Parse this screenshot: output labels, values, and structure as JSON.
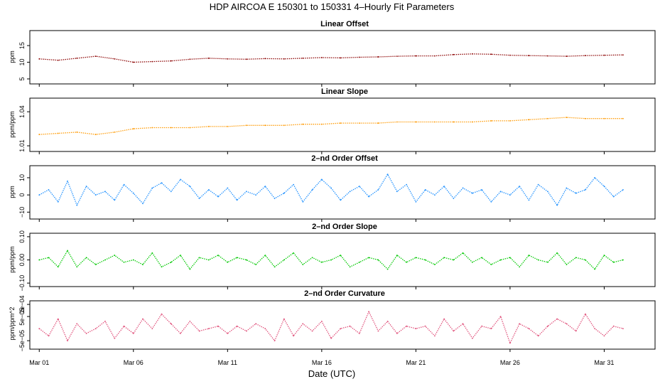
{
  "title": "HDP   AIRCOA E   150301 to 150331   4–Hourly Fit Parameters",
  "xlabel": "Date (UTC)",
  "x_ticks": [
    "Mar 01",
    "Mar 06",
    "Mar 11",
    "Mar 16",
    "Mar 21",
    "Mar 26",
    "Mar 31"
  ],
  "chart_data": [
    {
      "type": "line",
      "title": "Linear Offset",
      "ylabel": "ppm",
      "yticks": [
        "5",
        "10",
        "15"
      ],
      "ylim": [
        3.5,
        19.5
      ],
      "color": "#8b0000",
      "x": [
        1,
        2,
        3,
        4,
        5,
        6,
        7,
        8,
        9,
        10,
        11,
        12,
        13,
        14,
        15,
        16,
        17,
        18,
        19,
        20,
        21,
        22,
        23,
        24,
        25,
        26,
        27,
        28,
        29,
        30,
        31,
        32
      ],
      "values": [
        11.0,
        10.6,
        11.2,
        11.8,
        11.0,
        10.0,
        10.2,
        10.4,
        10.9,
        11.2,
        11.0,
        10.9,
        11.1,
        11.0,
        11.2,
        11.4,
        11.3,
        11.5,
        11.6,
        11.8,
        11.9,
        11.9,
        12.3,
        12.5,
        12.4,
        12.1,
        12.0,
        11.9,
        11.8,
        12.0,
        12.1,
        12.2
      ]
    },
    {
      "type": "line",
      "title": "Linear Slope",
      "ylabel": "ppm/ppm",
      "yticks": [
        "1.01",
        "1.04"
      ],
      "ylim": [
        1.005,
        1.052
      ],
      "color": "#ff9900",
      "x": [
        1,
        2,
        3,
        4,
        5,
        6,
        7,
        8,
        9,
        10,
        11,
        12,
        13,
        14,
        15,
        16,
        17,
        18,
        19,
        20,
        21,
        22,
        23,
        24,
        25,
        26,
        27,
        28,
        29,
        30,
        31,
        32
      ],
      "values": [
        1.02,
        1.021,
        1.022,
        1.02,
        1.022,
        1.025,
        1.026,
        1.026,
        1.026,
        1.027,
        1.027,
        1.028,
        1.028,
        1.028,
        1.029,
        1.029,
        1.03,
        1.03,
        1.03,
        1.031,
        1.031,
        1.031,
        1.031,
        1.031,
        1.032,
        1.032,
        1.033,
        1.034,
        1.035,
        1.034,
        1.034,
        1.034
      ]
    },
    {
      "type": "line",
      "title": "2–nd Order Offset",
      "ylabel": "ppm",
      "yticks": [
        "−10",
        "0",
        "10"
      ],
      "ylim": [
        -14,
        17
      ],
      "color": "#1e90ff",
      "x": [
        1,
        1.5,
        2,
        2.5,
        3,
        3.5,
        4,
        4.5,
        5,
        5.5,
        6,
        6.5,
        7,
        7.5,
        8,
        8.5,
        9,
        9.5,
        10,
        10.5,
        11,
        11.5,
        12,
        12.5,
        13,
        13.5,
        14,
        14.5,
        15,
        15.5,
        16,
        16.5,
        17,
        17.5,
        18,
        18.5,
        19,
        19.5,
        20,
        20.5,
        21,
        21.5,
        22,
        22.5,
        23,
        23.5,
        24,
        24.5,
        25,
        25.5,
        26,
        26.5,
        27,
        27.5,
        28,
        28.5,
        29,
        29.5,
        30,
        30.5,
        31,
        31.5,
        32
      ],
      "values": [
        0,
        3,
        -4,
        8,
        -6,
        5,
        0,
        2,
        -3,
        6,
        1,
        -5,
        4,
        7,
        2,
        9,
        5,
        -2,
        3,
        -1,
        4,
        -3,
        2,
        0,
        5,
        -2,
        1,
        6,
        -4,
        3,
        9,
        4,
        -3,
        2,
        5,
        -1,
        3,
        12,
        2,
        6,
        -4,
        3,
        0,
        5,
        -2,
        4,
        1,
        3,
        -4,
        2,
        0,
        5,
        -3,
        6,
        2,
        -6,
        4,
        1,
        3,
        10,
        5,
        -1,
        3
      ]
    },
    {
      "type": "line",
      "title": "2–nd Order Slope",
      "ylabel": "ppm/ppm",
      "yticks": [
        "−0.10",
        "0.00",
        "0.10"
      ],
      "ylim": [
        -0.115,
        0.115
      ],
      "color": "#00c800",
      "x": [
        1,
        1.5,
        2,
        2.5,
        3,
        3.5,
        4,
        4.5,
        5,
        5.5,
        6,
        6.5,
        7,
        7.5,
        8,
        8.5,
        9,
        9.5,
        10,
        10.5,
        11,
        11.5,
        12,
        12.5,
        13,
        13.5,
        14,
        14.5,
        15,
        15.5,
        16,
        16.5,
        17,
        17.5,
        18,
        18.5,
        19,
        19.5,
        20,
        20.5,
        21,
        21.5,
        22,
        22.5,
        23,
        23.5,
        24,
        24.5,
        25,
        25.5,
        26,
        26.5,
        27,
        27.5,
        28,
        28.5,
        29,
        29.5,
        30,
        30.5,
        31,
        31.5,
        32
      ],
      "values": [
        0.0,
        0.01,
        -0.03,
        0.04,
        -0.03,
        0.01,
        -0.02,
        0.0,
        0.02,
        -0.01,
        0.0,
        -0.02,
        0.03,
        -0.03,
        -0.01,
        0.02,
        -0.04,
        0.01,
        0.0,
        0.02,
        -0.01,
        0.01,
        0.0,
        -0.02,
        0.02,
        -0.03,
        0.0,
        0.03,
        -0.02,
        0.01,
        -0.01,
        0.0,
        0.02,
        -0.03,
        -0.01,
        0.01,
        0.0,
        -0.04,
        0.02,
        -0.01,
        0.01,
        0.0,
        -0.02,
        0.01,
        0.0,
        0.03,
        -0.01,
        0.01,
        -0.02,
        0.0,
        0.01,
        -0.03,
        0.02,
        0.0,
        -0.01,
        0.03,
        -0.02,
        0.01,
        0.0,
        -0.04,
        0.02,
        -0.01,
        0.0
      ]
    },
    {
      "type": "line",
      "title": "2–nd Order Curvature",
      "ylabel": "ppm/ppm^2",
      "yticks": [
        "−5e−05",
        "5e−05",
        "1e−04"
      ],
      "ylim": [
        -8.5e-05,
        0.000115
      ],
      "color": "#e0507a",
      "x": [
        1,
        1.5,
        2,
        2.5,
        3,
        3.5,
        4,
        4.5,
        5,
        5.5,
        6,
        6.5,
        7,
        7.5,
        8,
        8.5,
        9,
        9.5,
        10,
        10.5,
        11,
        11.5,
        12,
        12.5,
        13,
        13.5,
        14,
        14.5,
        15,
        15.5,
        16,
        16.5,
        17,
        17.5,
        18,
        18.5,
        19,
        19.5,
        20,
        20.5,
        21,
        21.5,
        22,
        22.5,
        23,
        23.5,
        24,
        24.5,
        25,
        25.5,
        26,
        26.5,
        27,
        27.5,
        28,
        28.5,
        29,
        29.5,
        30,
        30.5,
        31,
        31.5,
        32
      ],
      "values": [
        0.0,
        -3e-05,
        4e-05,
        -5e-05,
        2e-05,
        -2e-05,
        0.0,
        3e-05,
        -4e-05,
        1e-05,
        -2e-05,
        4e-05,
        0.0,
        6e-05,
        2e-05,
        -2e-05,
        3e-05,
        -1e-05,
        0.0,
        1e-05,
        -2e-05,
        1e-05,
        -1e-05,
        2e-05,
        0.0,
        -5e-05,
        4e-05,
        -3e-05,
        2e-05,
        -1e-05,
        3e-05,
        -4e-05,
        0.0,
        1e-05,
        -2e-05,
        7e-05,
        -1e-05,
        3e-05,
        -2e-05,
        1e-05,
        0.0,
        1e-05,
        -3e-05,
        4e-05,
        -1e-05,
        2e-05,
        -4e-05,
        1e-05,
        0.0,
        5e-05,
        -6e-05,
        2e-05,
        0.0,
        -3e-05,
        1e-05,
        4e-05,
        2e-05,
        -1e-05,
        6e-05,
        0.0,
        -3e-05,
        1e-05,
        0.0
      ]
    }
  ]
}
